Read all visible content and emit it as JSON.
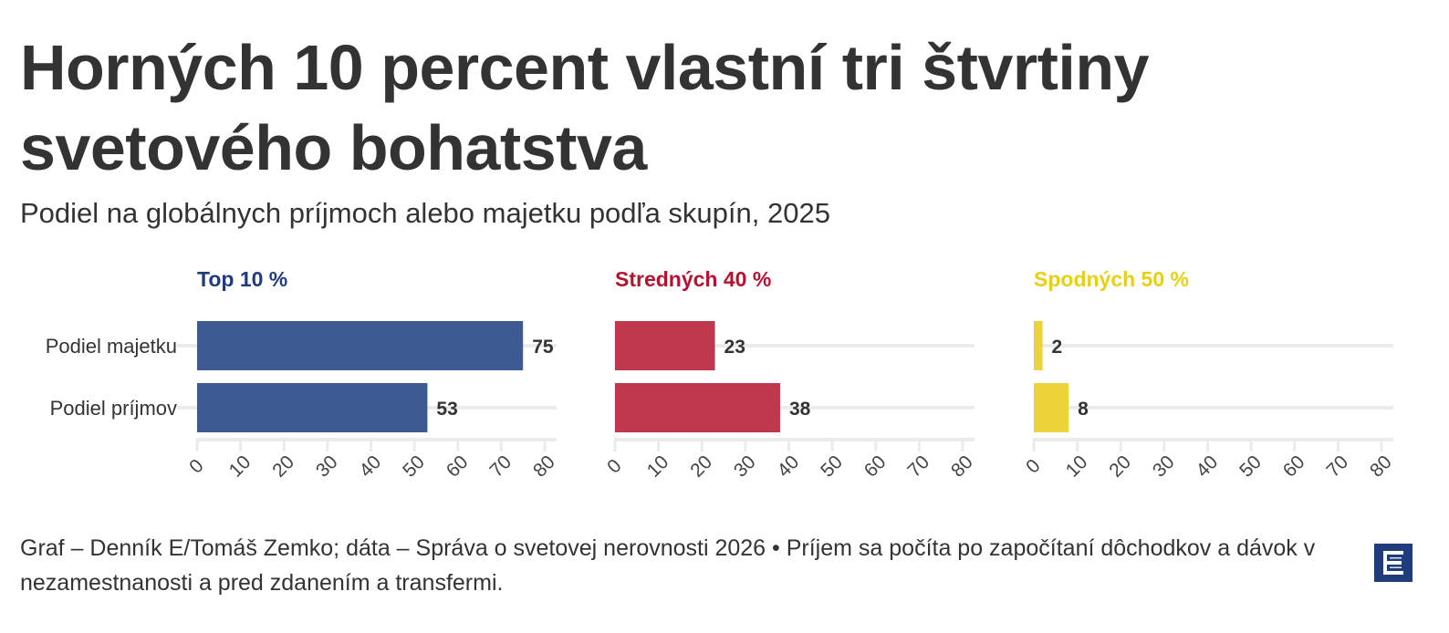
{
  "header": {
    "title": "Horných 10 percent vlastní tri štvrtiny svetového bohatstva",
    "subtitle": "Podiel na globálnych príjmoch alebo majetku podľa skupín, 2025"
  },
  "chart_data": {
    "type": "bar",
    "orientation": "horizontal",
    "title": "Horných 10 percent vlastní tri štvrtiny svetového bohatstva",
    "subtitle": "Podiel na globálnych príjmoch alebo majetku podľa skupín, 2025",
    "categories": [
      "Podiel majetku",
      "Podiel príjmov"
    ],
    "xlim": [
      0,
      80
    ],
    "xticks": [
      "0",
      "10",
      "20",
      "30",
      "40",
      "50",
      "60",
      "70",
      "80"
    ],
    "grid": true,
    "panels": [
      {
        "name": "Top 10 %",
        "color": "#1f3d7c",
        "bar_color": "#3d5a92",
        "values": [
          75,
          53
        ]
      },
      {
        "name": "Stredných 40 %",
        "color": "#b5122f",
        "bar_color": "#c0384d",
        "values": [
          23,
          38
        ]
      },
      {
        "name": "Spodných 50 %",
        "color": "#e8cf16",
        "bar_color": "#ecd33a",
        "values": [
          2,
          8
        ]
      }
    ]
  },
  "footer": {
    "notes": "Graf – Denník E/Tomáš Zemko; dáta – Správa o svetovej nerovnosti 2026 • Príjem sa počíta po započítaní dôchodkov a dávok v nezamestnanosti a pred zdanením a transfermi.",
    "logo": "E",
    "logo_color": "#1f3d7c"
  }
}
